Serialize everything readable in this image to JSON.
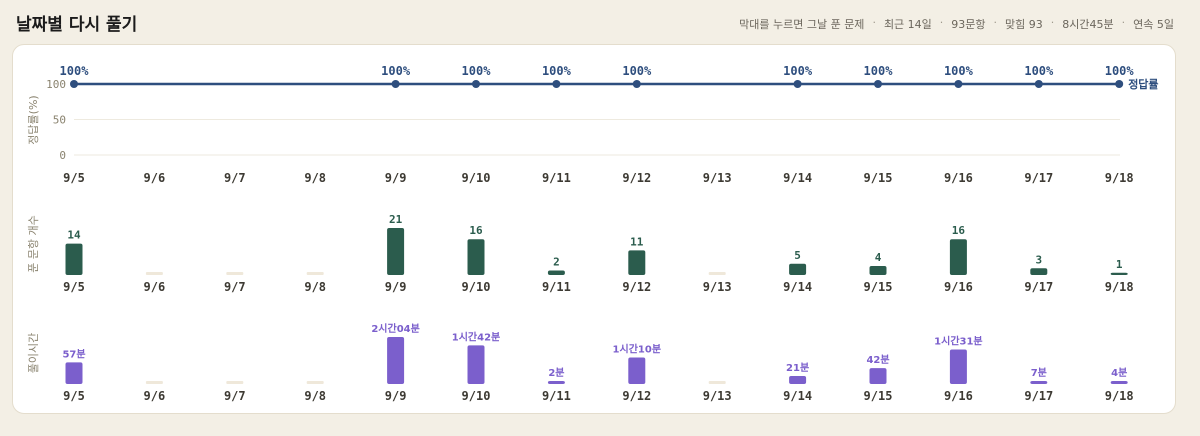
{
  "header": {
    "title": "날짜별 다시 풀기",
    "summary": [
      "막대를 누르면 그날 푼 문제",
      "최근 14일",
      "93문항",
      "맞힘 93",
      "8시간45분",
      "연속 5일"
    ]
  },
  "colors": {
    "line": "#2e4e7e",
    "count_bar": "#2b5c4d",
    "time_bar": "#7b5fcc",
    "empty_bar": "#efe8da",
    "grid": "#eeeadf"
  },
  "chart_data": [
    {
      "type": "line",
      "ylabel": "정답률(%)",
      "series_label": "정답률",
      "yticks": [
        100,
        50,
        0
      ],
      "ylim": [
        0,
        100
      ],
      "x": [
        "9/5",
        "9/6",
        "9/7",
        "9/8",
        "9/9",
        "9/10",
        "9/11",
        "9/12",
        "9/13",
        "9/14",
        "9/15",
        "9/16",
        "9/17",
        "9/18"
      ],
      "values": [
        100,
        null,
        null,
        null,
        100,
        100,
        100,
        100,
        null,
        100,
        100,
        100,
        100,
        100
      ],
      "labels": [
        "100%",
        "",
        "",
        "",
        "100%",
        "100%",
        "100%",
        "100%",
        "",
        "100%",
        "100%",
        "100%",
        "100%",
        "100%"
      ]
    },
    {
      "type": "bar",
      "ylabel": "푼 문항 개수",
      "x": [
        "9/5",
        "9/6",
        "9/7",
        "9/8",
        "9/9",
        "9/10",
        "9/11",
        "9/12",
        "9/13",
        "9/14",
        "9/15",
        "9/16",
        "9/17",
        "9/18"
      ],
      "values": [
        14,
        0,
        0,
        0,
        21,
        16,
        2,
        11,
        0,
        5,
        4,
        16,
        3,
        1
      ],
      "labels": [
        "14",
        "",
        "",
        "",
        "21",
        "16",
        "2",
        "11",
        "",
        "5",
        "4",
        "16",
        "3",
        "1"
      ]
    },
    {
      "type": "bar",
      "ylabel": "풀이시간",
      "x": [
        "9/5",
        "9/6",
        "9/7",
        "9/8",
        "9/9",
        "9/10",
        "9/11",
        "9/12",
        "9/13",
        "9/14",
        "9/15",
        "9/16",
        "9/17",
        "9/18"
      ],
      "values_minutes": [
        57,
        0,
        0,
        0,
        124,
        102,
        2,
        70,
        0,
        21,
        42,
        91,
        7,
        4
      ],
      "labels": [
        "57분",
        "",
        "",
        "",
        "2시간04분",
        "1시간42분",
        "2분",
        "1시간10분",
        "",
        "21분",
        "42분",
        "1시간31분",
        "7분",
        "4분"
      ]
    }
  ]
}
